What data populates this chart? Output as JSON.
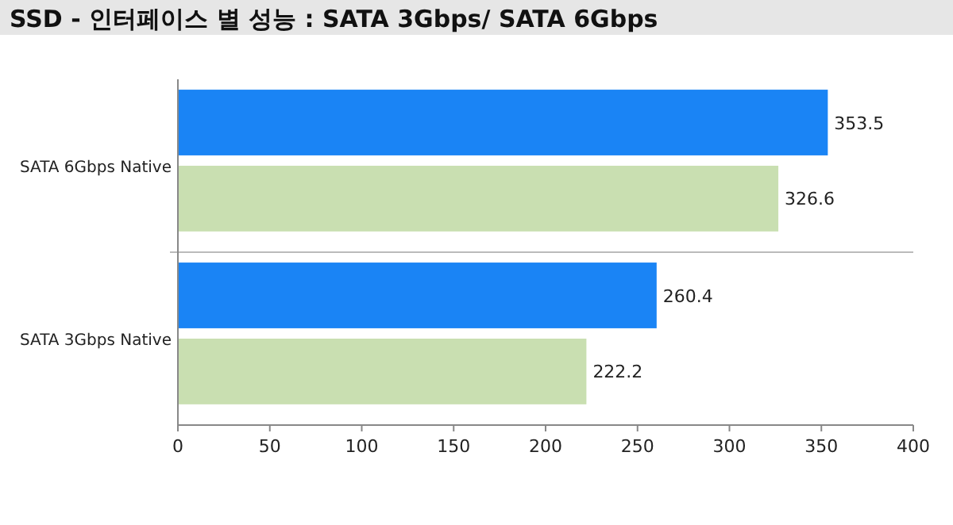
{
  "chart_data": {
    "type": "bar",
    "orientation": "horizontal",
    "title": "SSD - 인터페이스 별 성능 : SATA 3Gbps/ SATA 6Gbps",
    "categories": [
      "SATA 6Gbps Native",
      "SATA 3Gbps Native"
    ],
    "series": [
      {
        "color": "#1a84f5",
        "values": [
          353.5,
          260.4
        ]
      },
      {
        "color": "#c9dfb1",
        "values": [
          326.6,
          222.2
        ]
      }
    ],
    "xlim": [
      0,
      400
    ],
    "xticks": [
      0,
      50,
      100,
      150,
      200,
      250,
      300,
      350,
      400
    ],
    "data_labels": true,
    "grid": false
  }
}
